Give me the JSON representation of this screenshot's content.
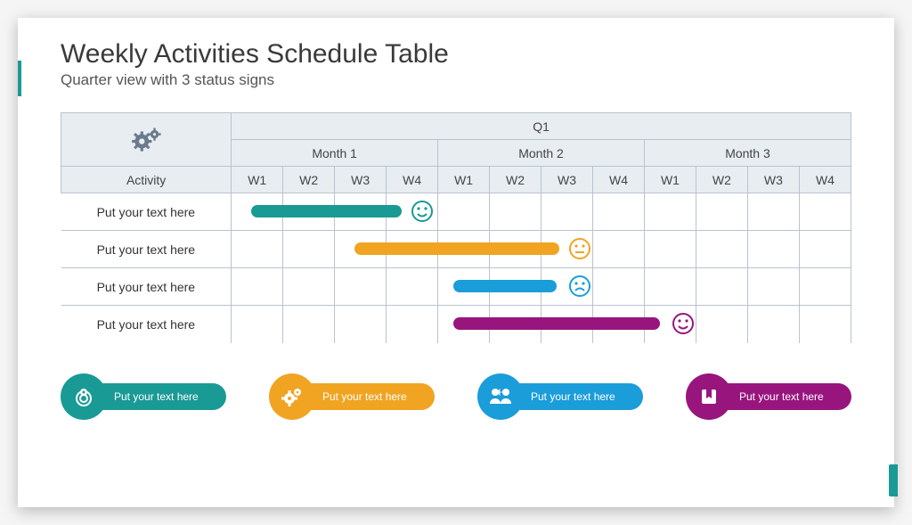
{
  "title": "Weekly Activities Schedule Table",
  "subtitle": "Quarter view with 3 status signs",
  "colors": {
    "accent": "#1a9a95",
    "header_bg": "#e8edf2",
    "border": "#b9c3d0",
    "gear": "#6b7a8c",
    "teal": "#1a9a95",
    "orange": "#f0a422",
    "blue": "#1b9dd9",
    "purple": "#98157e"
  },
  "table": {
    "quarter_label": "Q1",
    "activity_header": "Activity",
    "months": [
      "Month 1",
      "Month 2",
      "Month 3"
    ],
    "weeks": [
      "W1",
      "W2",
      "W3",
      "W4",
      "W1",
      "W2",
      "W3",
      "W4",
      "W1",
      "W2",
      "W3",
      "W4"
    ],
    "total_weeks": 12,
    "rows": [
      {
        "label": "Put your text here",
        "bar": {
          "start_week": 1.4,
          "end_week": 4.3,
          "color": "#1a9a95"
        },
        "status": {
          "week": 4.7,
          "face": "happy",
          "color": "#1a9a95"
        }
      },
      {
        "label": "Put your text here",
        "bar": {
          "start_week": 3.4,
          "end_week": 7.35,
          "color": "#f0a422"
        },
        "status": {
          "week": 7.75,
          "face": "neutral",
          "color": "#f0a422"
        }
      },
      {
        "label": "Put your text here",
        "bar": {
          "start_week": 5.3,
          "end_week": 7.3,
          "color": "#1b9dd9"
        },
        "status": {
          "week": 7.75,
          "face": "sad",
          "color": "#1b9dd9"
        }
      },
      {
        "label": "Put your text here",
        "bar": {
          "start_week": 5.3,
          "end_week": 9.3,
          "color": "#98157e"
        },
        "status": {
          "week": 9.75,
          "face": "happy",
          "color": "#98157e"
        }
      }
    ]
  },
  "legend": [
    {
      "label": "Put your text here",
      "color": "#1a9a95",
      "icon": "target"
    },
    {
      "label": "Put your text here",
      "color": "#f0a422",
      "icon": "gears"
    },
    {
      "label": "Put your text here",
      "color": "#1b9dd9",
      "icon": "people"
    },
    {
      "label": "Put your text here",
      "color": "#98157e",
      "icon": "bookmark"
    }
  ]
}
